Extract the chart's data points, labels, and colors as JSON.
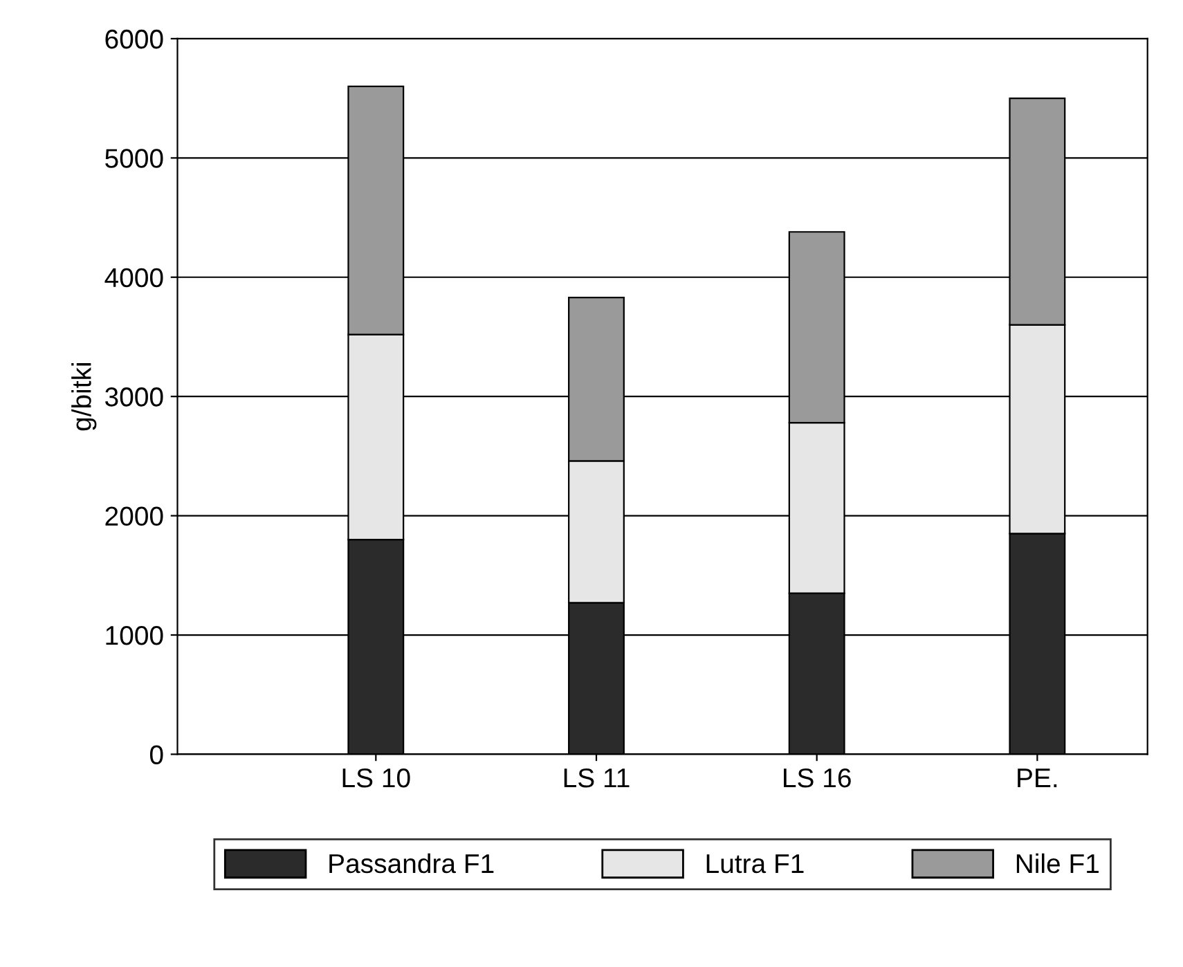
{
  "chart_data": {
    "type": "bar",
    "stacked": true,
    "ylabel": "g/bitki",
    "categories": [
      "LS 10",
      "LS 11",
      "LS 16",
      "PE."
    ],
    "series": [
      {
        "name": "Passandra F1",
        "color": "#2b2b2b",
        "values": [
          1800,
          1270,
          1350,
          1850
        ]
      },
      {
        "name": "Lutra F1",
        "color": "#e6e6e6",
        "values": [
          1720,
          1190,
          1430,
          1750
        ]
      },
      {
        "name": "Nile F1",
        "color": "#9a9a9a",
        "values": [
          2080,
          1370,
          1600,
          1900
        ]
      }
    ],
    "ylim": [
      0,
      6000
    ],
    "yticks": [
      0,
      1000,
      2000,
      3000,
      4000,
      5000,
      6000
    ],
    "grid": "y",
    "legend": "bottom"
  }
}
